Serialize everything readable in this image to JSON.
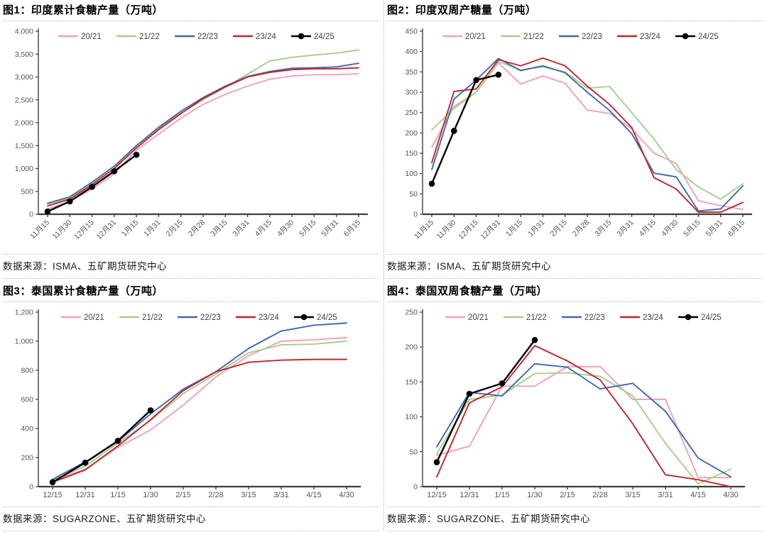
{
  "page": {
    "background": "#ffffff"
  },
  "series_colors": {
    "20/21": "#F2A1B5",
    "21/22": "#A5CF8D",
    "22/23": "#3E68B0",
    "23/24": "#C3242C",
    "24/25": "#000000"
  },
  "chart_data": [
    {
      "type": "line",
      "title": "图1：印度累计食糖产量（万吨）",
      "source": "数据来源：ISMA、五矿期货研究中心",
      "legend_position": "top",
      "grid": false,
      "x_label_rotation": -45,
      "ylim": [
        0,
        4000
      ],
      "yticks": {
        "values": [
          0,
          500,
          1000,
          1500,
          2000,
          2500,
          3000,
          3500,
          4000
        ],
        "labels": [
          "0",
          "500",
          "1,000",
          "1,500",
          "2,000",
          "2,500",
          "3,000",
          "3,500",
          "4,000"
        ]
      },
      "categories": [
        "11月15",
        "11月30",
        "12月15",
        "12月31",
        "1月15",
        "1月31",
        "2月15",
        "2月28",
        "3月15",
        "3月31",
        "4月15",
        "4月30",
        "5月15",
        "5月31",
        "6月15"
      ],
      "series": [
        {
          "name": "20/21",
          "color": "#F2A1B5",
          "marker": false,
          "values": [
            110,
            280,
            550,
            880,
            1400,
            1750,
            2100,
            2400,
            2620,
            2800,
            2950,
            3020,
            3050,
            3050,
            3070
          ]
        },
        {
          "name": "21/22",
          "color": "#A5CF8D",
          "marker": false,
          "values": [
            220,
            350,
            650,
            1000,
            1450,
            1870,
            2210,
            2500,
            2780,
            3060,
            3350,
            3430,
            3480,
            3520,
            3590
          ]
        },
        {
          "name": "22/23",
          "color": "#3E68B0",
          "marker": false,
          "values": [
            240,
            380,
            700,
            1050,
            1500,
            1900,
            2250,
            2550,
            2800,
            3010,
            3120,
            3190,
            3200,
            3220,
            3300
          ]
        },
        {
          "name": "23/24",
          "color": "#C3242C",
          "marker": false,
          "values": [
            180,
            330,
            650,
            1000,
            1450,
            1850,
            2200,
            2530,
            2780,
            3000,
            3100,
            3160,
            3180,
            3180,
            3200
          ]
        },
        {
          "name": "24/25",
          "color": "#000000",
          "marker": true,
          "values": [
            60,
            280,
            600,
            940,
            1300
          ]
        }
      ]
    },
    {
      "type": "line",
      "title": "图2：印度双周产糖量（万吨）",
      "source": "数据来源：ISMA、五矿期货研究中心",
      "legend_position": "top",
      "grid": false,
      "x_label_rotation": -45,
      "ylim": [
        0,
        450
      ],
      "yticks": {
        "values": [
          0,
          50,
          100,
          150,
          200,
          250,
          300,
          350,
          400,
          450
        ],
        "labels": [
          "0",
          "50",
          "100",
          "150",
          "200",
          "250",
          "300",
          "350",
          "400",
          "450"
        ]
      },
      "categories": [
        "11月15",
        "11月30",
        "12月15",
        "12月31",
        "1月15",
        "1月31",
        "2月15",
        "2月28",
        "3月15",
        "3月31",
        "4月15",
        "4月30",
        "5月15",
        "5月31",
        "6月15"
      ],
      "series": [
        {
          "name": "20/21",
          "color": "#F2A1B5",
          "marker": false,
          "values": [
            165,
            265,
            300,
            372,
            320,
            340,
            322,
            256,
            248,
            210,
            150,
            125,
            33,
            21,
            12
          ]
        },
        {
          "name": "21/22",
          "color": "#A5CF8D",
          "marker": false,
          "values": [
            207,
            260,
            300,
            375,
            355,
            362,
            350,
            310,
            314,
            250,
            185,
            110,
            67,
            37,
            75
          ]
        },
        {
          "name": "22/23",
          "color": "#3E68B0",
          "marker": false,
          "values": [
            110,
            283,
            330,
            383,
            353,
            365,
            348,
            300,
            255,
            198,
            101,
            92,
            8,
            13,
            70
          ]
        },
        {
          "name": "23/24",
          "color": "#C3242C",
          "marker": false,
          "values": [
            127,
            302,
            308,
            380,
            365,
            384,
            365,
            315,
            270,
            213,
            90,
            62,
            5,
            5,
            29
          ]
        },
        {
          "name": "24/25",
          "color": "#000000",
          "marker": true,
          "values": [
            75,
            205,
            330,
            343
          ]
        }
      ]
    },
    {
      "type": "line",
      "title": "图3：泰国累计食糖产量（万吨）",
      "source": "数据来源：SUGARZONE、五矿期货研究中心",
      "legend_position": "top",
      "grid": false,
      "x_label_rotation": 0,
      "ylim": [
        0,
        1200
      ],
      "yticks": {
        "values": [
          0,
          200,
          400,
          600,
          800,
          1000,
          1200
        ],
        "labels": [
          "0",
          "200",
          "400",
          "600",
          "800",
          "1,000",
          "1,200"
        ]
      },
      "categories": [
        "12/15",
        "12/31",
        "1/15",
        "1/30",
        "2/15",
        "2/28",
        "3/15",
        "3/31",
        "4/15",
        "4/30"
      ],
      "series": [
        {
          "name": "20/21",
          "color": "#F2A1B5",
          "marker": false,
          "values": [
            40,
            120,
            270,
            390,
            560,
            755,
            900,
            1000,
            1010,
            1025
          ]
        },
        {
          "name": "21/22",
          "color": "#A5CF8D",
          "marker": false,
          "values": [
            45,
            140,
            300,
            455,
            640,
            775,
            920,
            975,
            980,
            1000
          ]
        },
        {
          "name": "22/23",
          "color": "#3E68B0",
          "marker": false,
          "values": [
            50,
            170,
            310,
            500,
            670,
            790,
            950,
            1070,
            1110,
            1125
          ]
        },
        {
          "name": "23/24",
          "color": "#C3242C",
          "marker": false,
          "values": [
            30,
            115,
            280,
            460,
            660,
            790,
            855,
            870,
            875,
            875
          ]
        },
        {
          "name": "24/25",
          "color": "#000000",
          "marker": true,
          "values": [
            30,
            165,
            315,
            525
          ]
        }
      ]
    },
    {
      "type": "line",
      "title": "图4：泰国双周食糖产量（万吨）",
      "source": "数据来源：SUGARZONE、五矿期货研究中心",
      "legend_position": "top",
      "grid": false,
      "x_label_rotation": 0,
      "ylim": [
        0,
        250
      ],
      "yticks": {
        "values": [
          0,
          50,
          100,
          150,
          200,
          250
        ],
        "labels": [
          "0",
          "50",
          "100",
          "150",
          "200",
          "250"
        ]
      },
      "categories": [
        "12/15",
        "12/31",
        "1/15",
        "1/30",
        "2/15",
        "2/28",
        "3/15",
        "3/31",
        "4/15",
        "4/30"
      ],
      "series": [
        {
          "name": "20/21",
          "color": "#F2A1B5",
          "marker": false,
          "values": [
            45,
            58,
            144,
            144,
            172,
            172,
            125,
            125,
            13,
            13
          ]
        },
        {
          "name": "21/22",
          "color": "#A5CF8D",
          "marker": false,
          "values": [
            47,
            125,
            131,
            162,
            163,
            158,
            130,
            62,
            4,
            25
          ]
        },
        {
          "name": "22/23",
          "color": "#3E68B0",
          "marker": false,
          "values": [
            57,
            135,
            130,
            176,
            171,
            140,
            148,
            108,
            41,
            14
          ]
        },
        {
          "name": "23/24",
          "color": "#C3242C",
          "marker": false,
          "values": [
            14,
            120,
            143,
            202,
            180,
            153,
            90,
            17,
            10,
            0
          ]
        },
        {
          "name": "24/25",
          "color": "#000000",
          "marker": true,
          "values": [
            35,
            133,
            148,
            210
          ]
        }
      ]
    }
  ]
}
